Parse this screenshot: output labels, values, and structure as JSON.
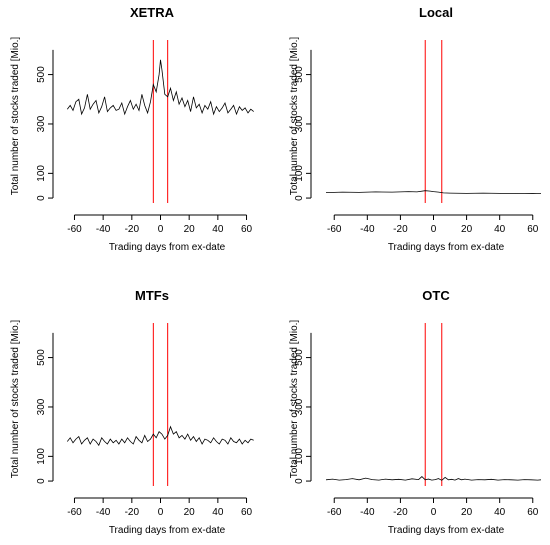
{
  "colors": {
    "series": "#000000",
    "event_window": "#ff0000",
    "background": "#ffffff"
  },
  "chart_data": [
    {
      "type": "line",
      "title": "XETRA",
      "xlabel": "Trading days from ex-date",
      "ylabel": "Total number of stocks traded [Mio.]",
      "xlim": [
        -65,
        65
      ],
      "ylim": [
        0,
        600
      ],
      "xticks": [
        -60,
        -40,
        -20,
        0,
        20,
        40,
        60
      ],
      "yticks": [
        0,
        100,
        300,
        500
      ],
      "vlines": [
        -5,
        5
      ],
      "series": [
        {
          "name": "",
          "x": [
            -65,
            -63,
            -61,
            -59,
            -57,
            -55,
            -53,
            -51,
            -49,
            -47,
            -45,
            -43,
            -41,
            -39,
            -37,
            -35,
            -33,
            -31,
            -29,
            -27,
            -25,
            -23,
            -21,
            -19,
            -17,
            -15,
            -13,
            -11,
            -9,
            -7,
            -5,
            -3,
            -1,
            0,
            1,
            3,
            5,
            7,
            9,
            11,
            13,
            15,
            17,
            19,
            21,
            23,
            25,
            27,
            29,
            31,
            33,
            35,
            37,
            39,
            41,
            43,
            45,
            47,
            49,
            51,
            53,
            55,
            57,
            59,
            61,
            63,
            65
          ],
          "y": [
            360,
            375,
            355,
            390,
            400,
            340,
            365,
            420,
            360,
            380,
            395,
            345,
            370,
            410,
            350,
            365,
            375,
            355,
            360,
            385,
            340,
            370,
            395,
            360,
            380,
            355,
            420,
            375,
            345,
            390,
            460,
            430,
            500,
            560,
            520,
            420,
            410,
            445,
            395,
            430,
            380,
            405,
            370,
            395,
            350,
            410,
            365,
            380,
            345,
            375,
            360,
            390,
            340,
            370,
            350,
            365,
            385,
            345,
            360,
            375,
            340,
            370,
            355,
            365,
            345,
            360,
            350
          ]
        }
      ]
    },
    {
      "type": "line",
      "title": "Local",
      "xlabel": "Trading days from ex-date",
      "ylabel": "Total number of stocks traded [Mio.]",
      "xlim": [
        -65,
        65
      ],
      "ylim": [
        0,
        600
      ],
      "xticks": [
        -60,
        -40,
        -20,
        0,
        20,
        40,
        60
      ],
      "yticks": [
        0,
        100,
        300,
        500
      ],
      "vlines": [
        -5,
        5
      ],
      "series": [
        {
          "name": "",
          "x": [
            -65,
            -55,
            -45,
            -35,
            -25,
            -15,
            -10,
            -5,
            -2,
            0,
            3,
            6,
            10,
            20,
            30,
            40,
            50,
            60,
            65
          ],
          "y": [
            22,
            24,
            23,
            25,
            24,
            26,
            25,
            30,
            28,
            26,
            24,
            21,
            20,
            19,
            20,
            19,
            18,
            19,
            18
          ]
        }
      ]
    },
    {
      "type": "line",
      "title": "MTFs",
      "xlabel": "Trading days from ex-date",
      "ylabel": "Total number of stocks traded [Mio.]",
      "xlim": [
        -65,
        65
      ],
      "ylim": [
        0,
        600
      ],
      "xticks": [
        -60,
        -40,
        -20,
        0,
        20,
        40,
        60
      ],
      "yticks": [
        0,
        100,
        300,
        500
      ],
      "vlines": [
        -5,
        5
      ],
      "series": [
        {
          "name": "",
          "x": [
            -65,
            -63,
            -61,
            -59,
            -57,
            -55,
            -53,
            -51,
            -49,
            -47,
            -45,
            -43,
            -41,
            -39,
            -37,
            -35,
            -33,
            -31,
            -29,
            -27,
            -25,
            -23,
            -21,
            -19,
            -17,
            -15,
            -13,
            -11,
            -9,
            -7,
            -5,
            -3,
            -1,
            1,
            3,
            5,
            7,
            9,
            11,
            13,
            15,
            17,
            19,
            21,
            23,
            25,
            27,
            29,
            31,
            33,
            35,
            37,
            39,
            41,
            43,
            45,
            47,
            49,
            51,
            53,
            55,
            57,
            59,
            61,
            63,
            65
          ],
          "y": [
            160,
            175,
            155,
            170,
            180,
            150,
            165,
            175,
            150,
            170,
            160,
            145,
            175,
            160,
            150,
            170,
            155,
            165,
            150,
            170,
            155,
            175,
            160,
            150,
            180,
            165,
            155,
            185,
            160,
            170,
            190,
            175,
            200,
            190,
            170,
            185,
            220,
            190,
            200,
            175,
            185,
            170,
            190,
            165,
            180,
            160,
            175,
            150,
            170,
            165,
            155,
            175,
            160,
            150,
            170,
            165,
            150,
            175,
            160,
            155,
            170,
            150,
            165,
            155,
            170,
            165
          ]
        }
      ]
    },
    {
      "type": "line",
      "title": "OTC",
      "xlabel": "Trading days from ex-date",
      "ylabel": "Total number of stocks traded [Mio.]",
      "xlim": [
        -65,
        65
      ],
      "ylim": [
        0,
        600
      ],
      "xticks": [
        -60,
        -40,
        -20,
        0,
        20,
        40,
        60
      ],
      "yticks": [
        0,
        100,
        300,
        500
      ],
      "vlines": [
        -5,
        5
      ],
      "series": [
        {
          "name": "",
          "x": [
            -65,
            -61,
            -57,
            -53,
            -49,
            -45,
            -41,
            -37,
            -33,
            -29,
            -25,
            -21,
            -17,
            -13,
            -9,
            -7,
            -5,
            -3,
            -1,
            1,
            3,
            5,
            7,
            9,
            11,
            13,
            15,
            17,
            19,
            23,
            27,
            31,
            35,
            39,
            43,
            47,
            51,
            55,
            59,
            63,
            65
          ],
          "y": [
            5,
            8,
            4,
            6,
            10,
            5,
            12,
            6,
            4,
            8,
            5,
            7,
            4,
            9,
            6,
            18,
            5,
            8,
            4,
            6,
            10,
            3,
            15,
            5,
            7,
            4,
            10,
            5,
            8,
            4,
            6,
            5,
            7,
            4,
            6,
            5,
            4,
            6,
            5,
            4,
            5
          ]
        }
      ]
    }
  ]
}
